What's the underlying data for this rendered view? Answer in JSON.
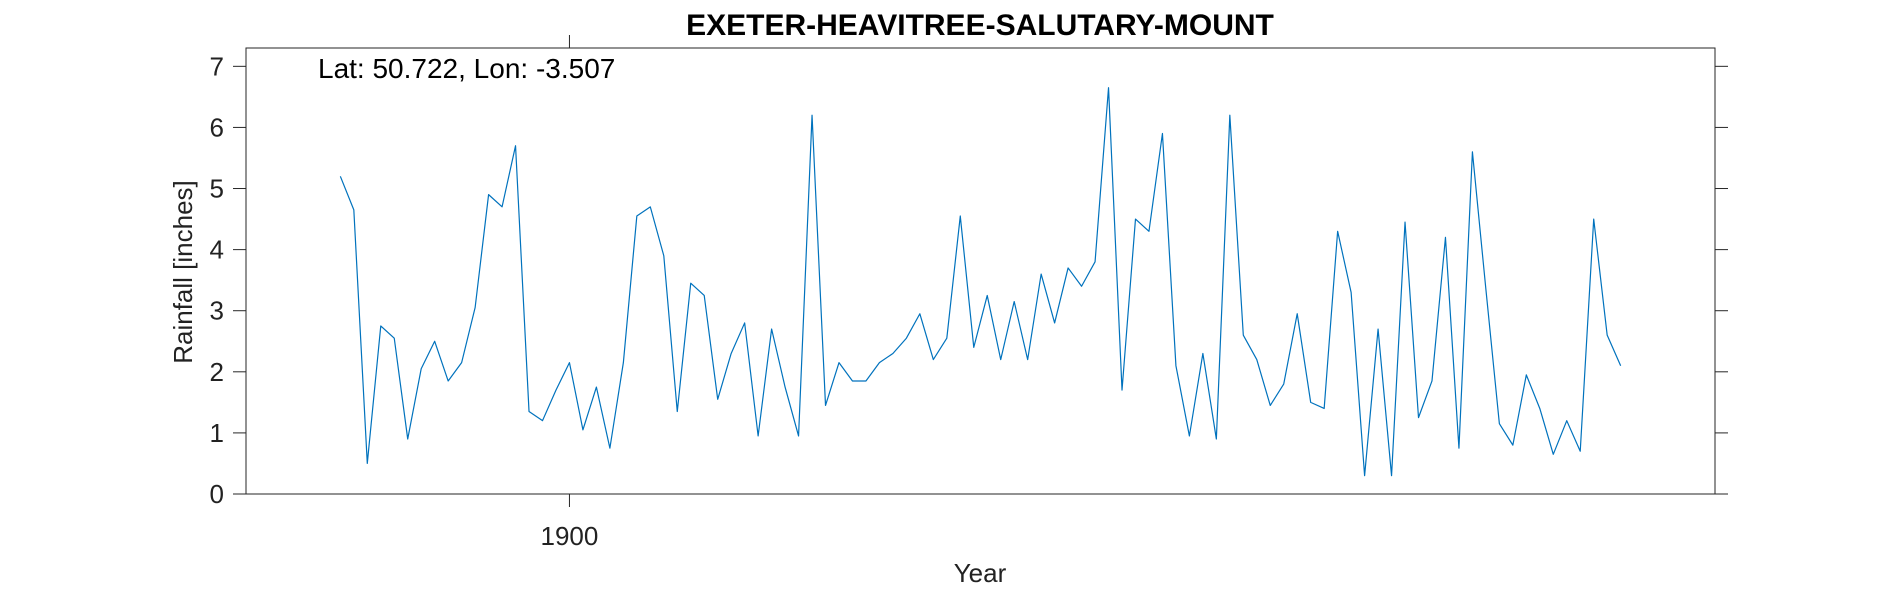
{
  "chart_data": {
    "type": "line",
    "title": "EXETER-HEAVITREE-SALUTARY-MOUNT",
    "xlabel": "Year",
    "ylabel": "Rainfall [inches]",
    "annotation": "Lat: 50.722, Lon: -3.507",
    "xlim": [
      1876,
      1985
    ],
    "ylim": [
      0,
      7.3
    ],
    "xticks": [
      1900
    ],
    "xtick_labels": [
      "1900"
    ],
    "yticks": [
      0,
      1,
      2,
      3,
      4,
      5,
      6,
      7
    ],
    "ytick_labels": [
      "0",
      "1",
      "2",
      "3",
      "4",
      "5",
      "6",
      "7"
    ],
    "grid": false,
    "series": [
      {
        "color": "#0072bd",
        "x": [
          1883,
          1884,
          1885,
          1886,
          1887,
          1888,
          1889,
          1890,
          1891,
          1892,
          1893,
          1894,
          1895,
          1896,
          1897,
          1898,
          1899,
          1900,
          1901,
          1902,
          1903,
          1904,
          1905,
          1906,
          1907,
          1908,
          1909,
          1910,
          1911,
          1912,
          1913,
          1914,
          1915,
          1916,
          1917,
          1918,
          1919,
          1920,
          1921,
          1922,
          1923,
          1924,
          1925,
          1926,
          1927,
          1928,
          1929,
          1930,
          1931,
          1932,
          1933,
          1934,
          1935,
          1936,
          1937,
          1938,
          1939,
          1940,
          1941,
          1942,
          1943,
          1944,
          1945,
          1946,
          1947,
          1948,
          1949,
          1950,
          1951,
          1952,
          1953,
          1954,
          1955,
          1956,
          1957,
          1958,
          1959,
          1960,
          1961,
          1962,
          1963,
          1964,
          1965,
          1966,
          1967,
          1968,
          1969,
          1970,
          1971,
          1972,
          1973,
          1974,
          1975,
          1976,
          1977,
          1978
        ],
        "values": [
          5.2,
          4.65,
          0.5,
          2.75,
          2.55,
          0.9,
          2.05,
          2.5,
          1.85,
          2.15,
          3.05,
          4.9,
          4.7,
          5.7,
          1.35,
          1.2,
          1.7,
          2.15,
          1.05,
          1.75,
          0.75,
          2.15,
          4.55,
          4.7,
          3.9,
          1.35,
          3.45,
          3.25,
          1.55,
          2.3,
          2.8,
          0.95,
          2.7,
          1.75,
          0.95,
          6.2,
          1.45,
          2.15,
          1.85,
          1.85,
          2.15,
          2.3,
          2.55,
          2.95,
          2.2,
          2.55,
          4.55,
          2.4,
          3.25,
          2.2,
          3.15,
          2.2,
          3.6,
          2.8,
          3.7,
          3.4,
          3.8,
          6.65,
          1.7,
          4.5,
          4.3,
          5.9,
          2.1,
          0.95,
          2.3,
          0.9,
          6.2,
          2.6,
          2.2,
          1.45,
          1.8,
          2.95,
          1.5,
          1.4,
          4.3,
          3.3,
          0.3,
          2.7,
          0.3,
          4.45,
          1.25,
          1.85,
          4.2,
          0.75,
          5.6,
          3.35,
          1.15,
          0.8,
          1.95,
          1.4,
          0.65,
          1.2,
          0.7,
          4.5,
          2.6,
          2.1
        ]
      }
    ]
  }
}
